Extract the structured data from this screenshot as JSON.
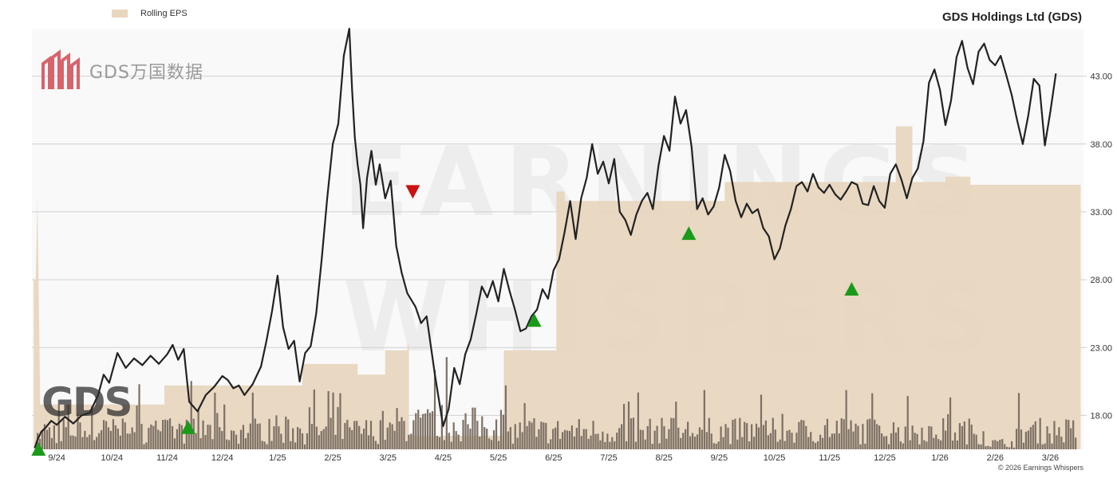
{
  "title": "GDS Holdings Ltd (GDS)",
  "legend": {
    "rolling_eps": "Rolling EPS"
  },
  "copyright": "© 2026 Earnings Whispers",
  "company_logo": {
    "text": "GDS万国数据",
    "mark": "GDS"
  },
  "watermark": {
    "top": "EARNINGS",
    "bottom": "WHISPERS"
  },
  "colors": {
    "price_line": "#222222",
    "eps_fill": "#e8d6bf",
    "volume": "#7d7165",
    "up_marker": "#1a9a1a",
    "down_marker": "#cc1111",
    "grid": "#d0d0d0",
    "plot_bg": "#f9f9f9"
  },
  "chart_data": {
    "type": "line",
    "y_axis": {
      "ticks": [
        18.0,
        23.0,
        28.0,
        33.0,
        38.0,
        43.0
      ],
      "tick_labels": [
        "18.00",
        "23.00",
        "28.00",
        "33.00",
        "38.00",
        "43.00"
      ],
      "range": [
        15.5,
        46.5
      ],
      "position": "right"
    },
    "x_axis": {
      "labels": [
        "9/24",
        "10/24",
        "11/24",
        "12/24",
        "1/25",
        "2/25",
        "3/25",
        "4/25",
        "5/25",
        "6/25",
        "7/25",
        "8/25",
        "9/25",
        "10/25",
        "11/25",
        "12/25",
        "1/26",
        "2/26",
        "3/26"
      ],
      "label_month_index": [
        0,
        1,
        2,
        3,
        4,
        5,
        6,
        7,
        8,
        9,
        10,
        11,
        12,
        13,
        14,
        15,
        16,
        17,
        18
      ],
      "month_range": [
        -0.45,
        18.6
      ]
    },
    "price_series": {
      "name": "GDS",
      "t": [
        -0.4,
        -0.35,
        -0.28,
        -0.2,
        -0.1,
        0.0,
        0.15,
        0.3,
        0.45,
        0.6,
        0.75,
        0.85,
        0.95,
        1.1,
        1.25,
        1.4,
        1.55,
        1.7,
        1.85,
        2.0,
        2.1,
        2.2,
        2.3,
        2.4,
        2.55,
        2.7,
        2.85,
        3.0,
        3.1,
        3.2,
        3.3,
        3.4,
        3.55,
        3.7,
        3.8,
        3.9,
        4.0,
        4.1,
        4.2,
        4.3,
        4.4,
        4.5,
        4.6,
        4.7,
        4.8,
        4.9,
        5.0,
        5.1,
        5.2,
        5.3,
        5.35,
        5.4,
        5.45,
        5.5,
        5.55,
        5.62,
        5.7,
        5.78,
        5.85,
        5.95,
        6.05,
        6.15,
        6.25,
        6.35,
        6.5,
        6.6,
        6.7,
        6.85,
        7.0,
        7.1,
        7.2,
        7.3,
        7.4,
        7.5,
        7.6,
        7.7,
        7.8,
        7.9,
        8.0,
        8.1,
        8.2,
        8.3,
        8.4,
        8.5,
        8.6,
        8.7,
        8.8,
        8.9,
        9.0,
        9.1,
        9.2,
        9.3,
        9.4,
        9.5,
        9.6,
        9.7,
        9.8,
        9.9,
        10.0,
        10.1,
        10.2,
        10.3,
        10.4,
        10.5,
        10.6,
        10.7,
        10.8,
        10.9,
        11.0,
        11.1,
        11.2,
        11.3,
        11.4,
        11.5,
        11.6,
        11.7,
        11.8,
        11.9,
        12.0,
        12.1,
        12.2,
        12.3,
        12.4,
        12.5,
        12.6,
        12.7,
        12.8,
        12.9,
        13.0,
        13.1,
        13.2,
        13.3,
        13.4,
        13.5,
        13.6,
        13.7,
        13.8,
        13.9,
        14.0,
        14.1,
        14.2,
        14.3,
        14.4,
        14.5,
        14.6,
        14.7,
        14.8,
        14.9,
        15.0,
        15.1,
        15.2,
        15.3,
        15.4,
        15.5,
        15.6,
        15.7,
        15.8,
        15.9,
        16.0,
        16.1,
        16.2,
        16.3,
        16.4,
        16.5,
        16.6,
        16.7,
        16.8,
        16.9,
        17.0,
        17.1,
        17.2,
        17.3,
        17.4,
        17.5,
        17.6,
        17.7,
        17.8,
        17.9,
        18.0,
        18.1,
        18.2,
        18.3,
        18.4,
        18.5
      ],
      "price": [
        15.6,
        16.2,
        16.8,
        17.1,
        17.6,
        17.3,
        17.9,
        17.4,
        18.0,
        18.2,
        19.5,
        21.0,
        20.4,
        22.6,
        21.5,
        22.2,
        21.7,
        22.4,
        21.8,
        22.5,
        23.2,
        22.1,
        22.9,
        19.0,
        18.3,
        19.5,
        20.1,
        20.9,
        20.6,
        20.0,
        20.2,
        19.5,
        20.3,
        21.6,
        23.5,
        25.7,
        28.3,
        24.5,
        22.9,
        23.5,
        20.5,
        22.6,
        23.1,
        25.5,
        29.5,
        34.0,
        38.0,
        39.5,
        44.5,
        46.5,
        42.0,
        38.5,
        36.5,
        35.0,
        31.8,
        35.5,
        37.5,
        35.0,
        36.5,
        34.0,
        35.3,
        30.5,
        28.5,
        27.0,
        26.0,
        24.8,
        25.3,
        21.0,
        17.2,
        18.5,
        21.5,
        20.3,
        22.5,
        23.6,
        25.5,
        27.5,
        26.7,
        27.9,
        26.4,
        28.8,
        27.2,
        25.8,
        24.2,
        24.4,
        25.3,
        25.8,
        27.3,
        26.6,
        28.7,
        29.5,
        31.5,
        33.8,
        31.0,
        34.0,
        35.5,
        38.0,
        35.8,
        36.7,
        35.1,
        36.9,
        33.0,
        32.4,
        31.3,
        32.8,
        33.8,
        34.4,
        33.2,
        36.4,
        38.6,
        37.5,
        41.5,
        39.5,
        40.5,
        37.8,
        33.2,
        34.0,
        32.8,
        33.4,
        34.8,
        37.2,
        36.0,
        33.8,
        32.6,
        33.6,
        32.9,
        33.2,
        31.8,
        31.2,
        29.5,
        30.3,
        32.0,
        33.2,
        34.9,
        35.2,
        34.5,
        35.8,
        34.8,
        34.4,
        35.0,
        34.3,
        33.9,
        34.5,
        35.2,
        35.0,
        33.6,
        33.5,
        34.9,
        33.8,
        33.3,
        35.8,
        36.5,
        35.4,
        34.0,
        35.5,
        36.2,
        38.2,
        42.5,
        43.5,
        42.0,
        39.4,
        41.2,
        44.4,
        45.6,
        43.6,
        42.4,
        44.8,
        45.4,
        44.2,
        43.8,
        44.5,
        43.1,
        41.6,
        39.7,
        38.0,
        40.1,
        42.8,
        42.3,
        37.9,
        40.4,
        43.2
      ]
    },
    "eps_series": {
      "name": "Rolling EPS",
      "t": [
        -0.42,
        -0.38,
        -0.35,
        -0.3,
        1.95,
        1.95,
        4.45,
        4.45,
        5.45,
        5.45,
        5.95,
        5.95,
        6.35,
        6.35,
        6.38,
        6.38,
        7.05,
        7.05,
        8.1,
        8.1,
        9.05,
        9.05,
        9.2,
        9.2,
        12.1,
        12.1,
        15.2,
        15.2,
        15.5,
        15.5,
        16.1,
        16.1,
        16.55,
        16.55,
        18.55
      ],
      "eps": [
        28.0,
        28.0,
        34.0,
        18.8,
        18.8,
        20.2,
        20.2,
        21.8,
        21.8,
        21.0,
        21.0,
        22.8,
        22.8,
        23.2,
        23.2,
        16.5,
        16.5,
        16.5,
        16.5,
        22.8,
        22.8,
        34.5,
        34.5,
        33.8,
        33.8,
        35.2,
        35.2,
        39.3,
        39.3,
        35.2,
        35.2,
        35.6,
        35.6,
        35.0,
        35.0
      ]
    },
    "markers": [
      {
        "t": -0.33,
        "price": 15.5,
        "direction": "up"
      },
      {
        "t": 2.38,
        "price": 17.1,
        "direction": "up"
      },
      {
        "t": 6.45,
        "price": 34.5,
        "direction": "down"
      },
      {
        "t": 8.65,
        "price": 25.0,
        "direction": "up"
      },
      {
        "t": 11.45,
        "price": 31.4,
        "direction": "up"
      },
      {
        "t": 14.4,
        "price": 27.3,
        "direction": "up"
      }
    ],
    "volume": {
      "bars": 440,
      "note": "relative volume bars"
    }
  }
}
